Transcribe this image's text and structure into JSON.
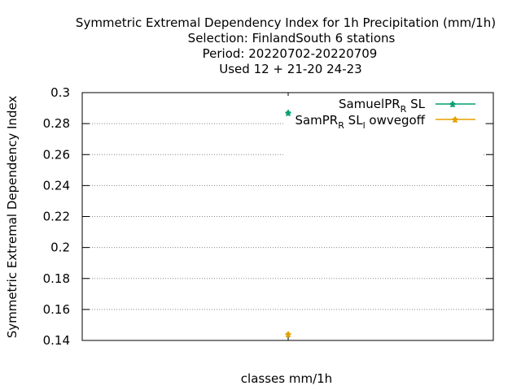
{
  "chart_data": {
    "type": "scatter",
    "title_lines": [
      "Symmetric Extremal Dependency Index  for 1h Precipitation (mm/1h)",
      "Selection: FinlandSouth      6 stations",
      "Period: 20220702-20220709",
      "Used  12 + 21-20 24-23"
    ],
    "xlabel": "classes mm/1h",
    "ylabel": "Symmetric Extremal Dependency Index",
    "ylim": [
      0.14,
      0.3
    ],
    "yticks": [
      "0.3",
      "0.28",
      "0.26",
      "0.24",
      "0.22",
      "0.2",
      "0.18",
      "0.16",
      "0.14"
    ],
    "ytick_values": [
      0.3,
      0.28,
      0.26,
      0.24,
      0.22,
      0.2,
      0.18,
      0.16,
      0.14
    ],
    "grid": true,
    "legend_position": "top-right",
    "series": [
      {
        "name": "SamuelPR_R SL",
        "legend_main": "SamuelPR",
        "legend_sub": "R",
        "legend_after": "SL",
        "color": "#009e73",
        "values": [
          0.287
        ]
      },
      {
        "name": "SamPR_R SL_l owvegoff",
        "legend_main": "SamPR",
        "legend_sub": "R",
        "legend_mid": "SL",
        "legend_sub2": "l",
        "legend_after": "owvegoff",
        "color": "#e69f00",
        "values": [
          0.144
        ]
      }
    ]
  }
}
